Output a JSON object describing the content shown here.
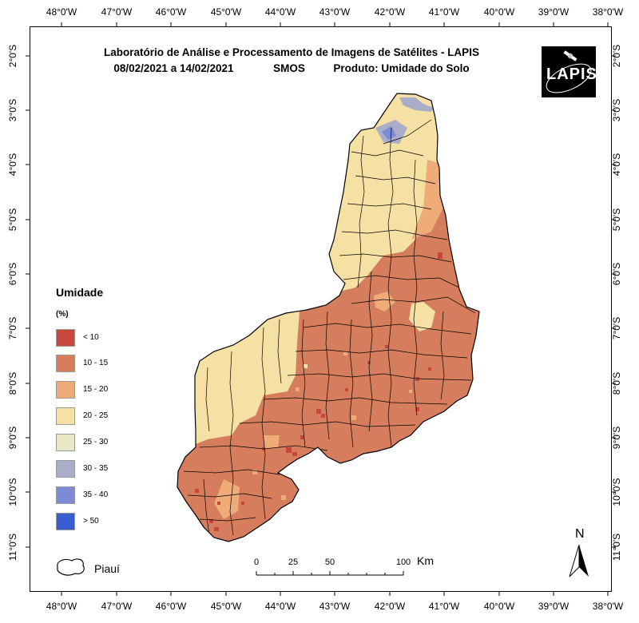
{
  "title": {
    "line1": "Laboratório de Análise e Processamento de Imagens de Satélites - LAPIS",
    "line2_dates": "08/02/2021  a  14/02/2021",
    "line2_sensor": "SMOS",
    "line2_product": "Produto: Umidade do Solo"
  },
  "logo": {
    "text": "LAPIS"
  },
  "longitude_labels": [
    "48°0'W",
    "47°0'W",
    "46°0'W",
    "45°0'W",
    "44°0'W",
    "43°0'W",
    "42°0'W",
    "41°0'W",
    "40°0'W",
    "39°0'W",
    "38°0'W"
  ],
  "latitude_labels": [
    "2°0'S",
    "3°0'S",
    "4°0'S",
    "5°0'S",
    "6°0'S",
    "7°0'S",
    "8°0'S",
    "9°0'S",
    "10°0'S",
    "11°0'S"
  ],
  "legend": {
    "title": "Umidade",
    "unit": "(%)",
    "items": [
      {
        "label": "< 10",
        "color": "#c8473c"
      },
      {
        "label": "10 - 15",
        "color": "#d57d5c"
      },
      {
        "label": "15 - 20",
        "color": "#efab78"
      },
      {
        "label": "20 - 25",
        "color": "#f6e1a4"
      },
      {
        "label": "25 - 30",
        "color": "#e9e7c5"
      },
      {
        "label": "30 - 35",
        "color": "#a9adc8"
      },
      {
        "label": "35 - 40",
        "color": "#7d8ad6"
      },
      {
        "label": "> 50",
        "color": "#3a5ed2"
      }
    ]
  },
  "scale_bar": {
    "ticks": [
      "0",
      "25",
      "50",
      "100"
    ],
    "unit": "Km"
  },
  "north_arrow": {
    "label": "N"
  },
  "state_legend": {
    "label": "Piauí"
  }
}
